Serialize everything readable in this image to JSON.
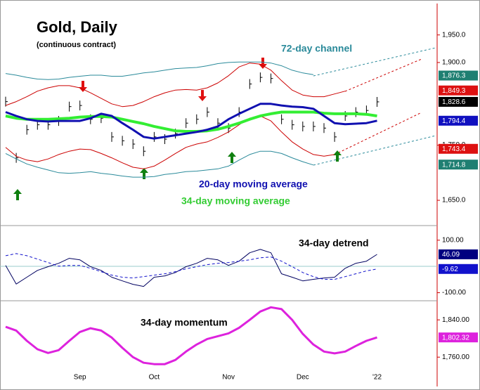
{
  "chart_data": [
    {
      "type": "line",
      "title": "Gold, Daily",
      "subtitle": "(continuous contract)",
      "ylim": [
        1608,
        2007
      ],
      "yticks": [
        {
          "value": 1950,
          "label": "1,950.0"
        },
        {
          "value": 1900,
          "label": "1,900.0"
        },
        {
          "value": 1750,
          "label": "1,750.0"
        },
        {
          "value": 1650,
          "label": "1,650.0"
        }
      ],
      "price": {
        "color": "#000000",
        "values": [
          1829,
          1727,
          1778,
          1787,
          1787,
          1794,
          1820,
          1822,
          1797,
          1799,
          1765,
          1758,
          1752,
          1739,
          1765,
          1761,
          1771,
          1790,
          1797,
          1810,
          1790,
          1781,
          1810,
          1861,
          1873,
          1871,
          1797,
          1787,
          1784,
          1784,
          1781,
          1765,
          1803,
          1810,
          1813,
          1828.6
        ]
      },
      "series": [
        {
          "name": "72-day channel",
          "color": "#2a8a9a",
          "values": [
            1880,
            1877,
            1873,
            1870,
            1869,
            1870,
            1873,
            1875,
            1877,
            1877,
            1875,
            1875,
            1878,
            1881,
            1883,
            1886,
            1889,
            1890,
            1891,
            1894,
            1898,
            1900,
            1901,
            1901,
            1901,
            1899,
            1894,
            1886,
            1881,
            1878,
            null,
            null,
            null,
            null,
            null,
            null
          ]
        },
        {
          "color": "#2a8a9a",
          "values": [
            1735,
            1725,
            1716,
            1710,
            1705,
            1700,
            1699,
            1700,
            1702,
            1699,
            1697,
            1694,
            1692,
            1692,
            1693,
            1697,
            1699,
            1702,
            1703,
            1705,
            1707,
            1712,
            1723,
            1733,
            1739,
            1739,
            1735,
            1727,
            1720,
            1714,
            null,
            null,
            null,
            null,
            null,
            null
          ]
        },
        {
          "color": "#cc0000",
          "values": [
            1822,
            1829,
            1838,
            1848,
            1854,
            1858,
            1858,
            1854,
            1845,
            1835,
            1825,
            1820,
            1822,
            1829,
            1838,
            1845,
            1850,
            1851,
            1850,
            1854,
            1863,
            1876,
            1892,
            1899,
            1897,
            1886,
            1867,
            1850,
            1841,
            1838,
            1838,
            1843,
            1848,
            null,
            null,
            null
          ]
        },
        {
          "color": "#cc0000",
          "values": [
            1746,
            1730,
            1723,
            1720,
            1725,
            1733,
            1739,
            1743,
            1742,
            1735,
            1727,
            1718,
            1710,
            1707,
            1712,
            1723,
            1735,
            1746,
            1752,
            1756,
            1764,
            1774,
            1787,
            1799,
            1803,
            1794,
            1774,
            1756,
            1743,
            1733,
            1730,
            1733,
            null,
            null,
            null,
            null
          ]
        },
        {
          "name": "34-day moving average",
          "color": "#33ee33",
          "values": [
            1803,
            1799,
            1797,
            1797,
            1797,
            1798,
            1799,
            1801,
            1802,
            1802,
            1801,
            1797,
            1793,
            1789,
            1784,
            1780,
            1776,
            1775,
            1775,
            1776,
            1779,
            1784,
            1790,
            1797,
            1803,
            1807,
            1810,
            1810,
            1810,
            1810,
            1808,
            1807,
            1807,
            1807,
            1806,
            1803
          ]
        },
        {
          "name": "20-day moving average",
          "color": "#1010b0",
          "values": [
            1810,
            1803,
            1797,
            1794,
            1793,
            1794,
            1794,
            1794,
            1799,
            1807,
            1803,
            1790,
            1778,
            1765,
            1762,
            1765,
            1768,
            1771,
            1774,
            1778,
            1784,
            1797,
            1807,
            1816,
            1825,
            1825,
            1822,
            1820,
            1819,
            1816,
            1803,
            1790,
            1788,
            1789,
            1790,
            1794.4
          ]
        }
      ],
      "price_tags": [
        {
          "label": "1,876.3",
          "value": 1876.3,
          "color": "#1f7f72"
        },
        {
          "label": "1,849.3",
          "value": 1849.3,
          "color": "#dd1111"
        },
        {
          "label": "1,828.6",
          "value": 1828.6,
          "color": "#000000"
        },
        {
          "label": "1,794.4",
          "value": 1794.4,
          "color": "#1010c0"
        },
        {
          "label": "1,743.4",
          "value": 1743.4,
          "color": "#dd1111"
        },
        {
          "label": "1,714.8",
          "value": 1714.8,
          "color": "#1f7f72"
        }
      ]
    },
    {
      "type": "line",
      "title": "34-day detrend",
      "ylim": [
        -128,
        145
      ],
      "yticks": [
        {
          "value": 100,
          "label": "100.00"
        },
        {
          "value": -100,
          "label": "-100.00"
        }
      ],
      "series": [
        {
          "color": "#000060",
          "dash": false,
          "values": [
            4,
            -67,
            -41,
            -15,
            -1,
            12,
            31,
            25,
            -1,
            -15,
            -41,
            -55,
            -68,
            -76,
            -41,
            -36,
            -23,
            -1,
            12,
            31,
            25,
            4,
            20,
            52,
            65,
            52,
            -28,
            -41,
            -55,
            -49,
            -44,
            -41,
            -7,
            12,
            20,
            46.09
          ]
        },
        {
          "color": "#1111cc",
          "dash": true,
          "values": [
            41,
            49,
            41,
            28,
            15,
            1,
            4,
            4,
            -7,
            -20,
            -33,
            -41,
            -44,
            -39,
            -33,
            -28,
            -20,
            -9,
            -1,
            7,
            12,
            15,
            20,
            25,
            33,
            36,
            20,
            -1,
            -23,
            -39,
            -49,
            -49,
            -39,
            -28,
            -17,
            -9.62
          ]
        }
      ],
      "price_tags": [
        {
          "label": "46.09",
          "value": 46.09,
          "color": "#000080"
        },
        {
          "label": "-9.62",
          "value": -9.62,
          "color": "#1111cc"
        }
      ]
    },
    {
      "type": "line",
      "title": "34-day momentum",
      "ylim": [
        1697,
        1878
      ],
      "yticks": [
        {
          "value": 1840,
          "label": "1,840.00"
        },
        {
          "value": 1760,
          "label": "1,760.00"
        }
      ],
      "categories": [
        null,
        null,
        null,
        null,
        null,
        null,
        null,
        "Sep",
        null,
        null,
        null,
        null,
        null,
        null,
        "Oct",
        null,
        null,
        null,
        null,
        null,
        null,
        "Nov",
        null,
        null,
        null,
        null,
        null,
        null,
        "Dec",
        null,
        null,
        null,
        null,
        null,
        null,
        "'22"
      ],
      "series": [
        {
          "color": "#dd22dd",
          "values": [
            1825,
            1817,
            1795,
            1777,
            1769,
            1775,
            1795,
            1814,
            1822,
            1817,
            1802,
            1780,
            1760,
            1748,
            1745,
            1745,
            1754,
            1772,
            1787,
            1799,
            1805,
            1811,
            1823,
            1840,
            1858,
            1867,
            1863,
            1840,
            1810,
            1787,
            1772,
            1768,
            1772,
            1784,
            1795,
            1802.32
          ]
        }
      ],
      "price_tags": [
        {
          "label": "1,802.32",
          "value": 1802.32,
          "color": "#dd22dd"
        }
      ]
    }
  ]
}
